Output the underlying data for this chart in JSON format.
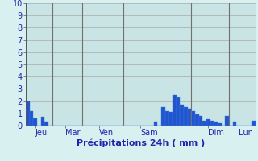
{
  "xlabel": "Précipitations 24h ( mm )",
  "background_color": "#d8f0f0",
  "plot_bg_color": "#c8e4e4",
  "bar_color": "#2255cc",
  "bar_edge_color": "#3377ee",
  "ylim": [
    0,
    10
  ],
  "yticks": [
    0,
    1,
    2,
    3,
    4,
    5,
    6,
    7,
    8,
    9,
    10
  ],
  "grid_color": "#aaaaaa",
  "axis_label_color": "#2222aa",
  "tick_label_color": "#2222aa",
  "day_labels": [
    "Jeu",
    "Mar",
    "Ven",
    "Sam",
    "Dim",
    "Lun"
  ],
  "values": [
    2.0,
    1.2,
    0.6,
    0.0,
    0.7,
    0.3,
    0.0,
    0.0,
    0.0,
    0.0,
    0.0,
    0.0,
    0.0,
    0.0,
    0.0,
    0.0,
    0.0,
    0.0,
    0.0,
    0.0,
    0.0,
    0.0,
    0.0,
    0.0,
    0.0,
    0.0,
    0.0,
    0.0,
    0.0,
    0.0,
    0.0,
    0.0,
    0.0,
    0.0,
    0.35,
    0.0,
    1.5,
    1.2,
    1.1,
    2.5,
    2.3,
    1.7,
    1.5,
    1.4,
    1.2,
    0.9,
    0.8,
    0.4,
    0.5,
    0.4,
    0.3,
    0.2,
    0.0,
    0.8,
    0.0,
    0.3,
    0.0,
    0.0,
    0.0,
    0.0,
    0.4
  ],
  "vline_color": "#707070",
  "day_tick_positions": [
    2,
    10,
    19,
    30,
    48,
    56
  ],
  "vline_x": [
    6.5,
    14.5,
    25.5,
    43.5,
    53.5
  ]
}
